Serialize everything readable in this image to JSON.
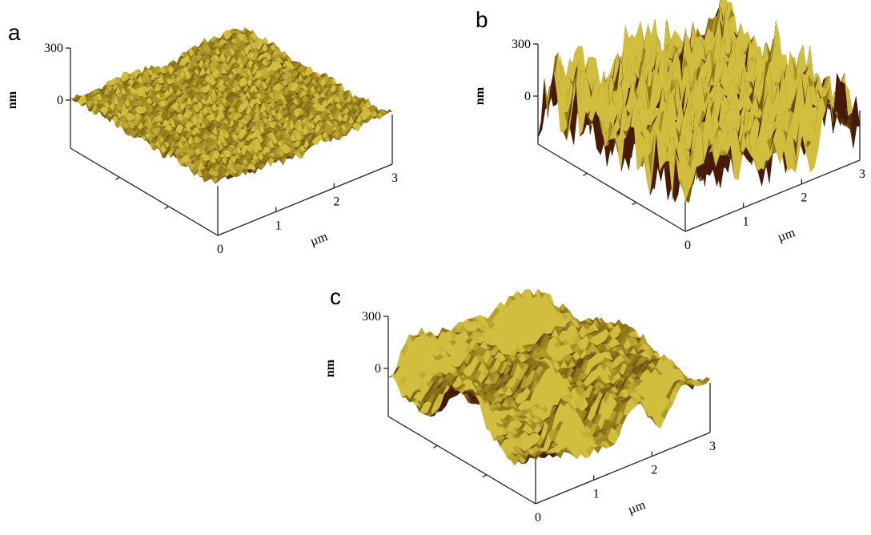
{
  "panels": [
    {
      "label": "a",
      "z_axis": {
        "unit": "nm",
        "ticks": [
          300,
          0
        ]
      },
      "x_axis": {
        "unit": "µm",
        "ticks": [
          0,
          1,
          2,
          3
        ]
      }
    },
    {
      "label": "b",
      "z_axis": {
        "unit": "nm",
        "ticks": [
          300,
          0
        ]
      },
      "x_axis": {
        "unit": "µm",
        "ticks": [
          0,
          1,
          2,
          3
        ]
      }
    },
    {
      "label": "c",
      "z_axis": {
        "unit": "nm",
        "ticks": [
          300,
          0
        ]
      },
      "x_axis": {
        "unit": "µm",
        "ticks": [
          0,
          1,
          2,
          3
        ]
      }
    }
  ]
}
